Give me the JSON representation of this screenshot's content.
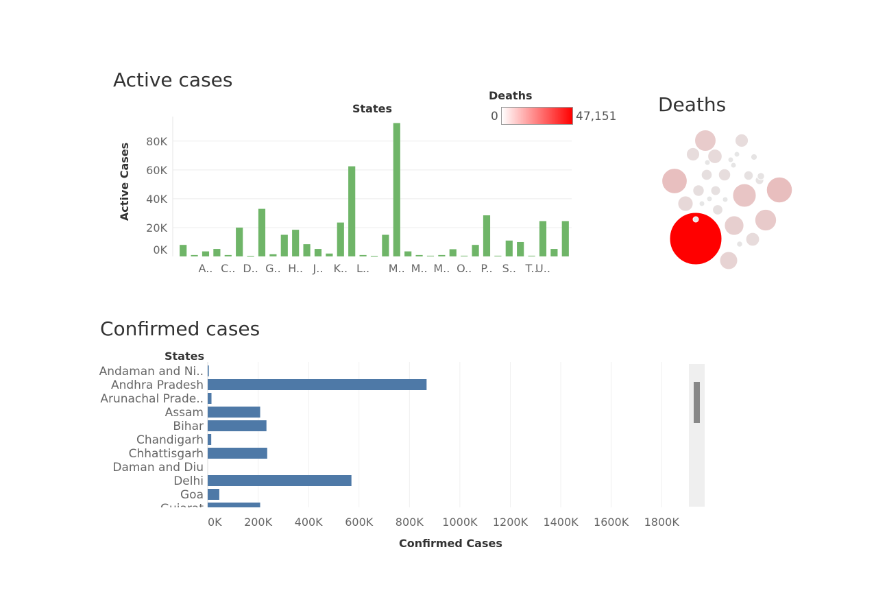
{
  "colors": {
    "active_bar": "#6fb568",
    "confirmed_bar": "#4e79a7",
    "death_min": "#ffffff",
    "death_max": "#ff0000"
  },
  "active_chart": {
    "chart_data": {
      "type": "bar",
      "title": "Active cases",
      "xlabel": "States",
      "ylabel": "Active Cases",
      "ylim": [
        0,
        97000
      ],
      "yticks": [
        "0K",
        "20K",
        "40K",
        "60K",
        "80K"
      ],
      "ytick_values": [
        0,
        20000,
        40000,
        60000,
        80000
      ],
      "xtick_labels": [
        "A..",
        "C..",
        "D..",
        "G..",
        "H..",
        "J..",
        "K..",
        "L..",
        "M..",
        "M..",
        "M..",
        "O..",
        "P..",
        "S..",
        "T..",
        "U.."
      ],
      "xtick_index": [
        2,
        4,
        6,
        8,
        10,
        12,
        14,
        16,
        19,
        21,
        23,
        25,
        27,
        29,
        31,
        32
      ],
      "values": [
        8000,
        1000,
        3500,
        5200,
        1000,
        20000,
        200,
        33000,
        1500,
        15000,
        18500,
        8500,
        5200,
        2000,
        23500,
        62500,
        1000,
        200,
        15000,
        92500,
        3500,
        1000,
        500,
        1000,
        5000,
        500,
        8000,
        28500,
        500,
        11000,
        10000,
        500,
        24500,
        5200,
        24500
      ],
      "grid": true
    }
  },
  "deaths_legend": {
    "title": "Deaths",
    "min_label": "0",
    "max_label": "47,151"
  },
  "deaths_chart": {
    "title": "Deaths",
    "chart_data": {
      "type": "bubble",
      "title": "Deaths",
      "color_range": [
        0,
        47151
      ],
      "bubbles": [
        {
          "value": 47151
        },
        {
          "value": 11000
        },
        {
          "value": 11500
        },
        {
          "value": 9500
        },
        {
          "value": 7800
        },
        {
          "value": 6500
        },
        {
          "value": 8000
        },
        {
          "value": 5500
        },
        {
          "value": 3500
        },
        {
          "value": 4000
        },
        {
          "value": 3000
        },
        {
          "value": 3200
        },
        {
          "value": 2500
        },
        {
          "value": 2200
        },
        {
          "value": 2000
        },
        {
          "value": 3000
        },
        {
          "value": 1800
        },
        {
          "value": 1600
        },
        {
          "value": 1500
        },
        {
          "value": 1200
        },
        {
          "value": 900
        },
        {
          "value": 700
        },
        {
          "value": 600
        },
        {
          "value": 400
        },
        {
          "value": 300
        },
        {
          "value": 200
        },
        {
          "value": 150
        },
        {
          "value": 100
        },
        {
          "value": 80
        },
        {
          "value": 60
        },
        {
          "value": 40
        }
      ]
    }
  },
  "confirmed_chart": {
    "chart_data": {
      "type": "bar",
      "orientation": "horizontal",
      "title": "Confirmed cases",
      "ylabel": "States",
      "xlabel": "Confirmed Cases",
      "xlim": [
        0,
        1900000
      ],
      "xticks": [
        "0K",
        "200K",
        "400K",
        "600K",
        "800K",
        "1000K",
        "1200K",
        "1400K",
        "1600K",
        "1800K"
      ],
      "xtick_values": [
        0,
        200000,
        400000,
        600000,
        800000,
        1000000,
        1200000,
        1400000,
        1600000,
        1800000
      ],
      "categories": [
        "Andaman and Ni..",
        "Andhra Pradesh",
        "Arunachal Prade..",
        "Assam",
        "Bihar",
        "Chandigarh",
        "Chhattisgarh",
        "Daman and Diu",
        "Delhi",
        "Goa",
        "Gujarat"
      ],
      "values": [
        4500,
        868000,
        15000,
        208000,
        233000,
        14000,
        236000,
        0,
        570000,
        46000,
        208000
      ],
      "grid": true
    }
  }
}
